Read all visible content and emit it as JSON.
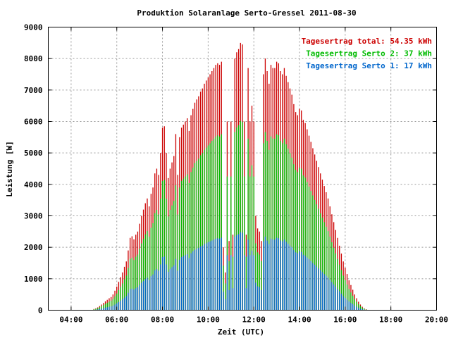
{
  "chart_data": {
    "type": "bar",
    "title": "Produktion Solaranlage Serto-Gressel 2011-08-30",
    "xlabel": "Zeit (UTC)",
    "ylabel": "Leistung [W]",
    "xlim_hours": [
      3,
      20
    ],
    "ylim": [
      0,
      9000
    ],
    "grid": true,
    "legend_position": "top-right",
    "x_ticks": [
      "04:00",
      "06:00",
      "08:00",
      "10:00",
      "12:00",
      "14:00",
      "16:00",
      "18:00",
      "20:00"
    ],
    "y_ticks": [
      "0",
      "1000",
      "2000",
      "3000",
      "4000",
      "5000",
      "6000",
      "7000",
      "8000",
      "9000"
    ],
    "legend": [
      {
        "label": "Tagesertrag total: 54.35 kWh",
        "color": "#cc0000"
      },
      {
        "label": "Tagesertrag Serto 2: 37 kWh",
        "color": "#00bb00"
      },
      {
        "label": "Tagesertrag Serto 1: 17 kWh",
        "color": "#0066cc"
      }
    ],
    "series": [
      {
        "name": "Tagesertrag total: 54.35 kWh",
        "color": "#cc0000"
      },
      {
        "name": "Tagesertrag Serto 2: 37 kWh",
        "color": "#00bb00"
      },
      {
        "name": "Tagesertrag Serto 1: 17 kWh",
        "color": "#0066cc"
      }
    ],
    "bar_interval_minutes": 5,
    "samples": [
      [
        "05:00",
        40,
        30,
        10
      ],
      [
        "05:05",
        60,
        45,
        15
      ],
      [
        "05:10",
        90,
        65,
        25
      ],
      [
        "05:15",
        130,
        95,
        35
      ],
      [
        "05:20",
        180,
        130,
        50
      ],
      [
        "05:25",
        230,
        165,
        65
      ],
      [
        "05:30",
        280,
        200,
        80
      ],
      [
        "05:35",
        330,
        235,
        95
      ],
      [
        "05:40",
        380,
        270,
        110
      ],
      [
        "05:45",
        420,
        300,
        120
      ],
      [
        "05:50",
        500,
        355,
        145
      ],
      [
        "05:55",
        620,
        440,
        180
      ],
      [
        "06:00",
        750,
        530,
        220
      ],
      [
        "06:05",
        900,
        640,
        260
      ],
      [
        "06:10",
        1050,
        745,
        305
      ],
      [
        "06:15",
        1200,
        850,
        350
      ],
      [
        "06:20",
        1380,
        980,
        400
      ],
      [
        "06:25",
        1550,
        1100,
        450
      ],
      [
        "06:30",
        1900,
        1345,
        555
      ],
      [
        "06:35",
        2300,
        1630,
        670
      ],
      [
        "06:40",
        2350,
        1665,
        685
      ],
      [
        "06:45",
        2250,
        1595,
        655
      ],
      [
        "06:50",
        2400,
        1700,
        700
      ],
      [
        "06:55",
        2500,
        1770,
        730
      ],
      [
        "07:00",
        2750,
        1950,
        800
      ],
      [
        "07:05",
        3000,
        2125,
        875
      ],
      [
        "07:10",
        3200,
        2270,
        930
      ],
      [
        "07:15",
        3400,
        2410,
        990
      ],
      [
        "07:20",
        3550,
        2515,
        1035
      ],
      [
        "07:25",
        3300,
        2340,
        960
      ],
      [
        "07:30",
        3700,
        2620,
        1080
      ],
      [
        "07:35",
        3900,
        2765,
        1135
      ],
      [
        "07:40",
        4350,
        3085,
        1265
      ],
      [
        "07:45",
        4500,
        3190,
        1310
      ],
      [
        "07:50",
        4300,
        3045,
        1255
      ],
      [
        "07:55",
        5000,
        3545,
        1455
      ],
      [
        "08:00",
        5800,
        4110,
        1690
      ],
      [
        "08:05",
        5850,
        4145,
        1705
      ],
      [
        "08:10",
        5000,
        3545,
        1455
      ],
      [
        "08:15",
        4200,
        2980,
        1220
      ],
      [
        "08:20",
        4500,
        3190,
        1310
      ],
      [
        "08:25",
        4700,
        3330,
        1370
      ],
      [
        "08:30",
        4900,
        3475,
        1425
      ],
      [
        "08:35",
        5600,
        3970,
        1630
      ],
      [
        "08:40",
        4300,
        3045,
        1255
      ],
      [
        "08:45",
        5500,
        3900,
        1600
      ],
      [
        "08:50",
        5800,
        4110,
        1690
      ],
      [
        "08:55",
        5900,
        4180,
        1720
      ],
      [
        "09:00",
        6000,
        4250,
        1750
      ],
      [
        "09:05",
        6100,
        4320,
        1780
      ],
      [
        "09:10",
        5700,
        4040,
        1660
      ],
      [
        "09:15",
        6200,
        4390,
        1810
      ],
      [
        "09:20",
        6400,
        4530,
        1870
      ],
      [
        "09:25",
        6600,
        4680,
        1920
      ],
      [
        "09:30",
        6700,
        4745,
        1955
      ],
      [
        "09:35",
        6800,
        4815,
        1985
      ],
      [
        "09:40",
        6950,
        4925,
        2025
      ],
      [
        "09:45",
        7050,
        4995,
        2055
      ],
      [
        "09:50",
        7200,
        5100,
        2100
      ],
      [
        "09:55",
        7300,
        5170,
        2130
      ],
      [
        "10:00",
        7400,
        5240,
        2160
      ],
      [
        "10:05",
        7500,
        5310,
        2190
      ],
      [
        "10:10",
        7600,
        5385,
        2215
      ],
      [
        "10:15",
        7700,
        5455,
        2245
      ],
      [
        "10:20",
        7800,
        5525,
        2275
      ],
      [
        "10:25",
        7850,
        5560,
        2290
      ],
      [
        "10:30",
        7800,
        5525,
        2275
      ],
      [
        "10:35",
        7900,
        5595,
        2305
      ],
      [
        "10:40",
        2000,
        1415,
        585
      ],
      [
        "10:45",
        1200,
        850,
        350
      ],
      [
        "10:50",
        6000,
        4250,
        1750
      ],
      [
        "10:55",
        2200,
        1560,
        640
      ],
      [
        "11:00",
        6000,
        4250,
        1750
      ],
      [
        "11:05",
        2400,
        1700,
        700
      ],
      [
        "11:10",
        8000,
        5665,
        2335
      ],
      [
        "11:15",
        8200,
        5810,
        2390
      ],
      [
        "11:20",
        8300,
        5880,
        2420
      ],
      [
        "11:25",
        8500,
        6020,
        2480
      ],
      [
        "11:30",
        8450,
        5985,
        2465
      ],
      [
        "11:35",
        6000,
        4250,
        1750
      ],
      [
        "11:40",
        2400,
        1700,
        700
      ],
      [
        "11:45",
        7700,
        5455,
        2245
      ],
      [
        "11:50",
        6000,
        4250,
        1750
      ],
      [
        "11:55",
        6500,
        4605,
        1895
      ],
      [
        "12:00",
        6000,
        4250,
        1750
      ],
      [
        "12:05",
        3000,
        2125,
        875
      ],
      [
        "12:10",
        2600,
        1840,
        760
      ],
      [
        "12:15",
        2500,
        1770,
        730
      ],
      [
        "12:20",
        2200,
        1560,
        640
      ],
      [
        "12:25",
        7500,
        5310,
        2190
      ],
      [
        "12:30",
        8000,
        5665,
        2335
      ],
      [
        "12:35",
        7600,
        5385,
        2215
      ],
      [
        "12:40",
        7200,
        5100,
        2100
      ],
      [
        "12:45",
        7800,
        5525,
        2275
      ],
      [
        "12:50",
        7700,
        5455,
        2245
      ],
      [
        "12:55",
        7700,
        5455,
        2245
      ],
      [
        "13:00",
        7900,
        5595,
        2305
      ],
      [
        "13:05",
        7850,
        5560,
        2290
      ],
      [
        "13:10",
        7600,
        5385,
        2215
      ],
      [
        "13:15",
        7500,
        5310,
        2190
      ],
      [
        "13:20",
        7700,
        5455,
        2245
      ],
      [
        "13:25",
        7450,
        5275,
        2175
      ],
      [
        "13:30",
        7250,
        5135,
        2115
      ],
      [
        "13:35",
        7050,
        4995,
        2055
      ],
      [
        "13:40",
        6850,
        4850,
        2000
      ],
      [
        "13:45",
        6550,
        4640,
        1910
      ],
      [
        "13:50",
        6300,
        4460,
        1840
      ],
      [
        "13:55",
        6200,
        4390,
        1810
      ],
      [
        "14:00",
        6400,
        4530,
        1870
      ],
      [
        "14:05",
        6350,
        4500,
        1850
      ],
      [
        "14:10",
        6050,
        4285,
        1765
      ],
      [
        "14:15",
        5950,
        4215,
        1735
      ],
      [
        "14:20",
        5750,
        4075,
        1675
      ],
      [
        "14:25",
        5550,
        3930,
        1620
      ],
      [
        "14:30",
        5350,
        3790,
        1560
      ],
      [
        "14:35",
        5150,
        3650,
        1500
      ],
      [
        "14:40",
        4950,
        3505,
        1445
      ],
      [
        "14:45",
        4750,
        3365,
        1385
      ],
      [
        "14:50",
        4550,
        3225,
        1325
      ],
      [
        "14:55",
        4350,
        3080,
        1270
      ],
      [
        "15:00",
        4150,
        2940,
        1210
      ],
      [
        "15:05",
        3950,
        2800,
        1150
      ],
      [
        "15:10",
        3750,
        2655,
        1095
      ],
      [
        "15:15",
        3550,
        2515,
        1035
      ],
      [
        "15:20",
        3300,
        2340,
        960
      ],
      [
        "15:25",
        3050,
        2160,
        890
      ],
      [
        "15:30",
        2800,
        1985,
        815
      ],
      [
        "15:35",
        2550,
        1805,
        745
      ],
      [
        "15:40",
        2300,
        1630,
        670
      ],
      [
        "15:45",
        2050,
        1450,
        600
      ],
      [
        "15:50",
        1800,
        1275,
        525
      ],
      [
        "15:55",
        1550,
        1100,
        450
      ],
      [
        "16:00",
        1350,
        955,
        395
      ],
      [
        "16:05",
        1150,
        815,
        335
      ],
      [
        "16:10",
        950,
        675,
        275
      ],
      [
        "16:15",
        800,
        565,
        235
      ],
      [
        "16:20",
        650,
        460,
        190
      ],
      [
        "16:25",
        500,
        355,
        145
      ],
      [
        "16:30",
        380,
        270,
        110
      ],
      [
        "16:35",
        270,
        190,
        80
      ],
      [
        "16:40",
        180,
        130,
        50
      ],
      [
        "16:45",
        110,
        80,
        30
      ],
      [
        "16:50",
        60,
        45,
        15
      ],
      [
        "16:55",
        30,
        20,
        10
      ]
    ]
  }
}
